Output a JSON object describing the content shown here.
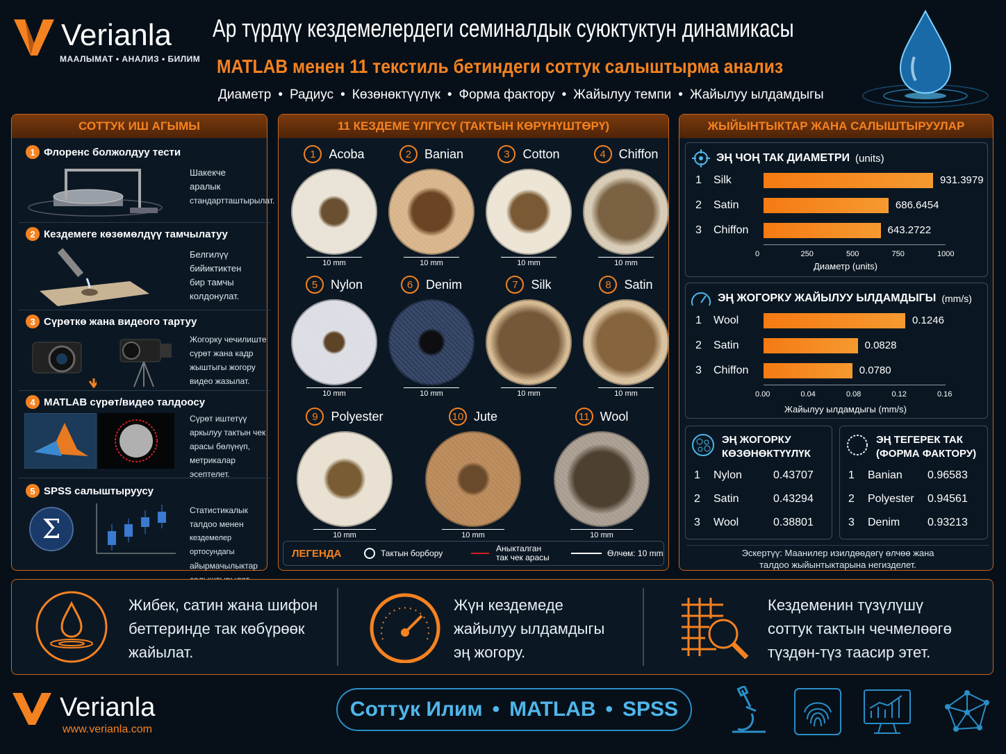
{
  "brand": {
    "name": "Verianla",
    "tagline": "МААЛЫМАТ • АНАЛИЗ • БИЛИМ",
    "url": "www.verianla.com",
    "accent": "#f58220"
  },
  "header": {
    "title": "Ар түрдүү кездемелердеги семиналдык суюктуктун динамикасы",
    "subtitle": "MATLAB менен 11 текстиль бетиндеги соттук салыштырма анализ",
    "metrics": [
      "Диаметр",
      "Радиус",
      "Көзөнөктүүлүк",
      "Форма фактору",
      "Жайылуу темпи",
      "Жайылуу ылдамдыгы"
    ]
  },
  "workflow": {
    "title": "СОТТУК ИШ АГЫМЫ",
    "steps": [
      {
        "num": "1",
        "title": "Флоренс болжолдуу тести",
        "desc": [
          "Шакекче",
          "аралык",
          "стандартташтырылат."
        ]
      },
      {
        "num": "2",
        "title": "Кездемеге көзөмөлдүү тамчылатуу",
        "desc": [
          "Белгилүү",
          "бийиктиктен",
          "бир тамчы",
          "колдонулат."
        ]
      },
      {
        "num": "3",
        "title": "Сүрөткө жана видеого тартуу",
        "desc": [
          "Жогорку чечилиште",
          "сүрөт жана кадр",
          "жыштыгы жогору",
          "видео жазылат."
        ]
      },
      {
        "num": "4",
        "title": "MATLAB сүрөт/видео талдоосу",
        "desc": [
          "Сүрөт иштетүү",
          "аркылуу тактын чек",
          "арасы бөлүнүп,",
          "метрикалар",
          "эсептелет."
        ]
      },
      {
        "num": "5",
        "title": "SPSS салыштыруусу",
        "desc": [
          "Статистикалык",
          "талдоо менен",
          "кездемелер ортосундагы",
          "айырмачылыктар",
          "салыштырылат."
        ]
      }
    ]
  },
  "samples": {
    "title": "11 КЕЗДЕМЕ ҮЛГҮСҮ (ТАКТЫН КӨРҮНҮШТӨРҮ)",
    "scale_label": "10 mm",
    "items": [
      {
        "num": "1",
        "name": "Acoba",
        "bg": "#e9e2d6",
        "stain": "#6a5030",
        "size": 46
      },
      {
        "num": "2",
        "name": "Banian",
        "bg": "#d8b48a",
        "stain": "#6a4424",
        "size": 70
      },
      {
        "num": "3",
        "name": "Cotton",
        "bg": "#ece4d4",
        "stain": "#7a5a34",
        "size": 64
      },
      {
        "num": "4",
        "name": "Chiffon",
        "bg": "#d6cab4",
        "stain": "#7a6242",
        "size": 100
      },
      {
        "num": "5",
        "name": "Nylon",
        "bg": "#dcdde4",
        "stain": "#5e4426",
        "size": 34
      },
      {
        "num": "6",
        "name": "Denim",
        "bg": "#2e3e5e",
        "stain": "#0e0e12",
        "size": 40
      },
      {
        "num": "7",
        "name": "Silk",
        "bg": "#d4b890",
        "stain": "#74583a",
        "size": 110
      },
      {
        "num": "8",
        "name": "Satin",
        "bg": "#d8c09c",
        "stain": "#86643e",
        "size": 104
      },
      {
        "num": "9",
        "name": "Polyester",
        "bg": "#e8e0d0",
        "stain": "#7a5c34",
        "size": 60
      },
      {
        "num": "10",
        "name": "Jute",
        "bg": "#b88858",
        "stain": "#6a4a2c",
        "size": 48
      },
      {
        "num": "11",
        "name": "Wool",
        "bg": "#a89c90",
        "stain": "#4e4030",
        "size": 100
      }
    ],
    "legend": {
      "title": "ЛЕГЕНДА",
      "center": "Тактын борбору",
      "boundary": [
        "Аныкталган",
        "так чек арасы"
      ],
      "scale": "Өлчөм: 10 mm"
    }
  },
  "results": {
    "title": "ЖЫЙЫНТЫКТАР ЖАНА САЛЫШТЫРУУЛАР",
    "diameter": {
      "title": "ЭҢ ЧОҢ ТАК ДИАМЕТРИ",
      "unit": "(units)",
      "xlabel": "Диаметр (units)",
      "ticks": [
        "0",
        "250",
        "500",
        "750",
        "1000"
      ]
    },
    "speed": {
      "title": "ЭҢ ЖОГОРКУ ЖАЙЫЛУУ ЫЛДАМДЫГЫ",
      "unit": "(mm/s)",
      "xlabel": "Жайылуу ылдамдыгы (mm/s)",
      "ticks": [
        "0.00",
        "0.04",
        "0.08",
        "0.12",
        "0.16"
      ]
    },
    "porosity": {
      "title": [
        "ЭҢ ЖОГОРКУ",
        "КӨЗӨНӨКТҮҮЛҮК"
      ],
      "rows": [
        {
          "rank": "1",
          "name": "Nylon",
          "value": "0.43707"
        },
        {
          "rank": "2",
          "name": "Satin",
          "value": "0.43294"
        },
        {
          "rank": "3",
          "name": "Wool",
          "value": "0.38801"
        }
      ]
    },
    "roundness": {
      "title": [
        "ЭҢ ТЕГЕРЕК ТАК",
        "(ФОРМА ФАКТОРУ)"
      ],
      "rows": [
        {
          "rank": "1",
          "name": "Banian",
          "value": "0.96583"
        },
        {
          "rank": "2",
          "name": "Polyester",
          "value": "0.94561"
        },
        {
          "rank": "3",
          "name": "Denim",
          "value": "0.93213"
        }
      ]
    },
    "note": [
      "Эскертүү: Маанилер изилдөөдөгү өлчөө жана",
      "талдоо жыйынтыктарына негизделет."
    ]
  },
  "chart_data": [
    {
      "type": "bar",
      "title": "ЭҢ ЧОҢ ТАК ДИАМЕТРИ (units)",
      "categories": [
        "Silk",
        "Satin",
        "Chiffon"
      ],
      "values": [
        931.3979,
        686.6454,
        643.2722
      ],
      "value_labels": [
        "931.3979",
        "686.6454",
        "643.2722"
      ],
      "xlim": [
        0,
        1000
      ],
      "xlabel": "Диаметр (units)",
      "orientation": "horizontal"
    },
    {
      "type": "bar",
      "title": "ЭҢ ЖОГОРКУ ЖАЙЫЛУУ ЫЛДАМДЫГЫ (mm/s)",
      "categories": [
        "Wool",
        "Satin",
        "Chiffon"
      ],
      "values": [
        0.1246,
        0.0828,
        0.078
      ],
      "value_labels": [
        "0.1246",
        "0.0828",
        "0.0780"
      ],
      "xlim": [
        0,
        0.16
      ],
      "xlabel": "Жайылуу ылдамдыгы (mm/s)",
      "orientation": "horizontal"
    }
  ],
  "conclusions": [
    {
      "lines": [
        "Жибек, сатин жана шифон",
        "беттеринде так көбүрөөк",
        "жайылат."
      ],
      "icon": "water-drop-icon"
    },
    {
      "lines": [
        "Жүн кездемеде",
        "жайылуу ылдамдыгы",
        "эң жогору."
      ],
      "icon": "speedometer-icon"
    },
    {
      "lines": [
        "Кездеменин түзүлүшү",
        "соттук тактын чечмелөөгө",
        "түздөн-түз таасир этет."
      ],
      "icon": "fabric-magnifier-icon"
    }
  ],
  "footer": {
    "pill": [
      "Соттук Илим",
      "MATLAB",
      "SPSS"
    ],
    "icons": [
      "microscope-icon",
      "fingerprint-icon",
      "monitor-chart-icon",
      "network-icon"
    ]
  }
}
